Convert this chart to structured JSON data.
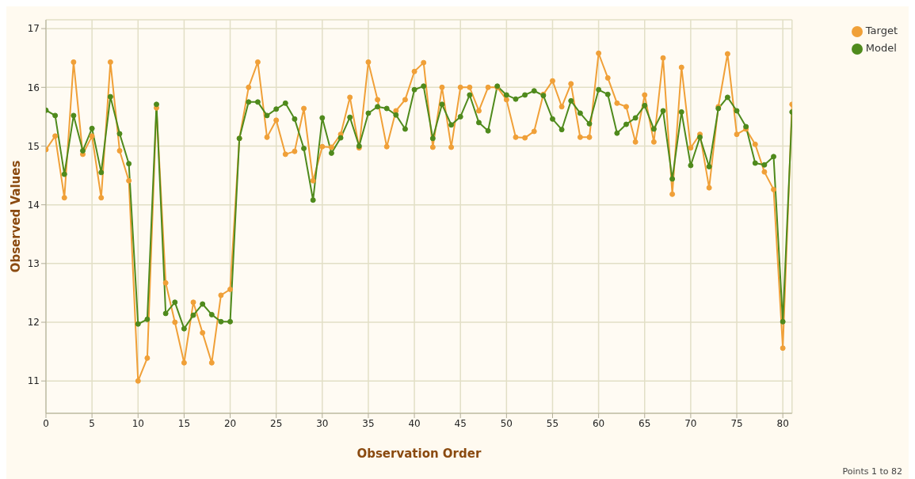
{
  "chart_data": {
    "type": "line",
    "xlabel": "Observation Order",
    "ylabel": "Observed Values",
    "x": [
      0,
      1,
      2,
      3,
      4,
      5,
      6,
      7,
      8,
      9,
      10,
      11,
      12,
      13,
      14,
      15,
      16,
      17,
      18,
      19,
      20,
      21,
      22,
      23,
      24,
      25,
      26,
      27,
      28,
      29,
      30,
      31,
      32,
      33,
      34,
      35,
      36,
      37,
      38,
      39,
      40,
      41,
      42,
      43,
      44,
      45,
      46,
      47,
      48,
      49,
      50,
      51,
      52,
      53,
      54,
      55,
      56,
      57,
      58,
      59,
      60,
      61,
      62,
      63,
      64,
      65,
      66,
      67,
      68,
      69,
      70,
      71,
      72,
      73,
      74,
      75,
      76,
      77,
      78,
      79,
      80,
      81
    ],
    "series": [
      {
        "name": "Target",
        "color": "#f0a038",
        "values": [
          14.94,
          15.17,
          14.12,
          16.43,
          14.86,
          15.17,
          14.12,
          16.43,
          14.92,
          14.41,
          11.0,
          11.39,
          15.65,
          12.67,
          12.0,
          11.31,
          12.34,
          11.82,
          11.31,
          12.46,
          12.56,
          15.13,
          16.0,
          16.43,
          15.15,
          15.44,
          14.86,
          14.91,
          15.64,
          14.41,
          14.99,
          14.98,
          15.2,
          15.83,
          14.97,
          16.43,
          15.79,
          14.99,
          15.6,
          15.79,
          16.27,
          16.42,
          14.98,
          16.0,
          14.98,
          16.0,
          16.0,
          15.6,
          16.0,
          16.0,
          15.79,
          15.15,
          15.14,
          15.25,
          15.88,
          16.11,
          15.67,
          16.06,
          15.15,
          15.15,
          16.58,
          16.16,
          15.73,
          15.67,
          15.07,
          15.87,
          15.07,
          16.5,
          14.18,
          16.34,
          14.97,
          15.2,
          14.29,
          15.67,
          16.57,
          15.2,
          15.29,
          15.03,
          14.56,
          14.26,
          11.56,
          15.71
        ]
      },
      {
        "name": "Model",
        "color": "#4f8a1c",
        "values": [
          15.61,
          15.52,
          14.52,
          15.52,
          14.92,
          15.3,
          14.55,
          15.84,
          15.21,
          14.7,
          11.97,
          12.05,
          15.71,
          12.15,
          12.34,
          11.89,
          12.12,
          12.31,
          12.13,
          12.01,
          12.01,
          15.13,
          15.75,
          15.75,
          15.52,
          15.63,
          15.73,
          15.46,
          14.96,
          14.08,
          15.48,
          14.88,
          15.14,
          15.49,
          15.0,
          15.56,
          15.67,
          15.64,
          15.53,
          15.29,
          15.96,
          16.02,
          15.13,
          15.71,
          15.36,
          15.5,
          15.87,
          15.4,
          15.26,
          16.02,
          15.87,
          15.8,
          15.87,
          15.94,
          15.86,
          15.46,
          15.28,
          15.77,
          15.56,
          15.38,
          15.96,
          15.88,
          15.22,
          15.37,
          15.48,
          15.69,
          15.29,
          15.6,
          14.44,
          15.58,
          14.67,
          15.15,
          14.65,
          15.64,
          15.83,
          15.6,
          15.33,
          14.71,
          14.68,
          14.82,
          12.01,
          15.58
        ]
      }
    ],
    "xlim": [
      0,
      81
    ],
    "xticks": [
      0,
      5,
      10,
      15,
      20,
      25,
      30,
      35,
      40,
      45,
      50,
      55,
      60,
      65,
      70,
      75,
      80
    ],
    "ylim": [
      10.45,
      17.15
    ],
    "yticks": [
      11,
      12,
      13,
      14,
      15,
      16,
      17
    ],
    "grid": true,
    "legend": "top right",
    "marker": "circle",
    "line_style": "solid",
    "annotations": [
      "Points 1 to 82"
    ]
  }
}
